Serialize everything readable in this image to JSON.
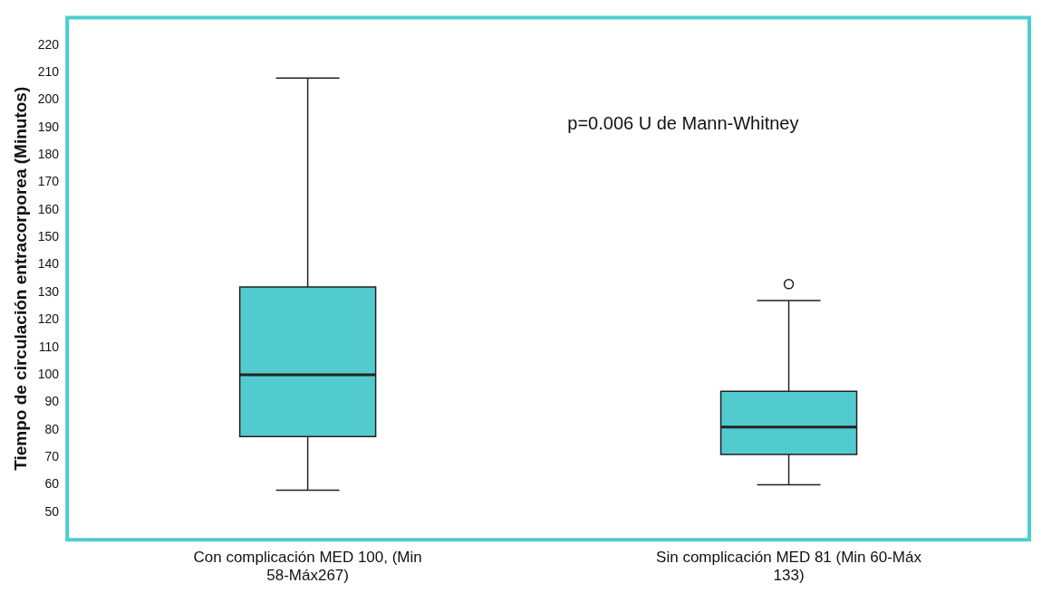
{
  "chart_data": {
    "type": "box",
    "ylabel": "Tiempo de circulación entracorporea (Minutos)",
    "categories": [
      "Con complicación MED 100, (Min 58-Máx267)",
      "Sin complicación MED 81 (Min 60-Máx 133)"
    ],
    "color": "#52cbcf",
    "boxes": [
      {
        "low": 58,
        "q1": 77.5,
        "median": 100,
        "q3": 132,
        "high": 208
      },
      {
        "low": 60,
        "q1": 71,
        "median": 81,
        "q3": 94,
        "high": 127,
        "outliers": [
          133
        ]
      }
    ],
    "ylim": [
      40,
      230
    ],
    "yticks": [
      50,
      60,
      70,
      80,
      90,
      100,
      110,
      120,
      130,
      140,
      150,
      160,
      170,
      180,
      190,
      200,
      210,
      220
    ],
    "grid": false,
    "annotations": [
      "p=0.006 U de Mann-Whitney"
    ]
  }
}
